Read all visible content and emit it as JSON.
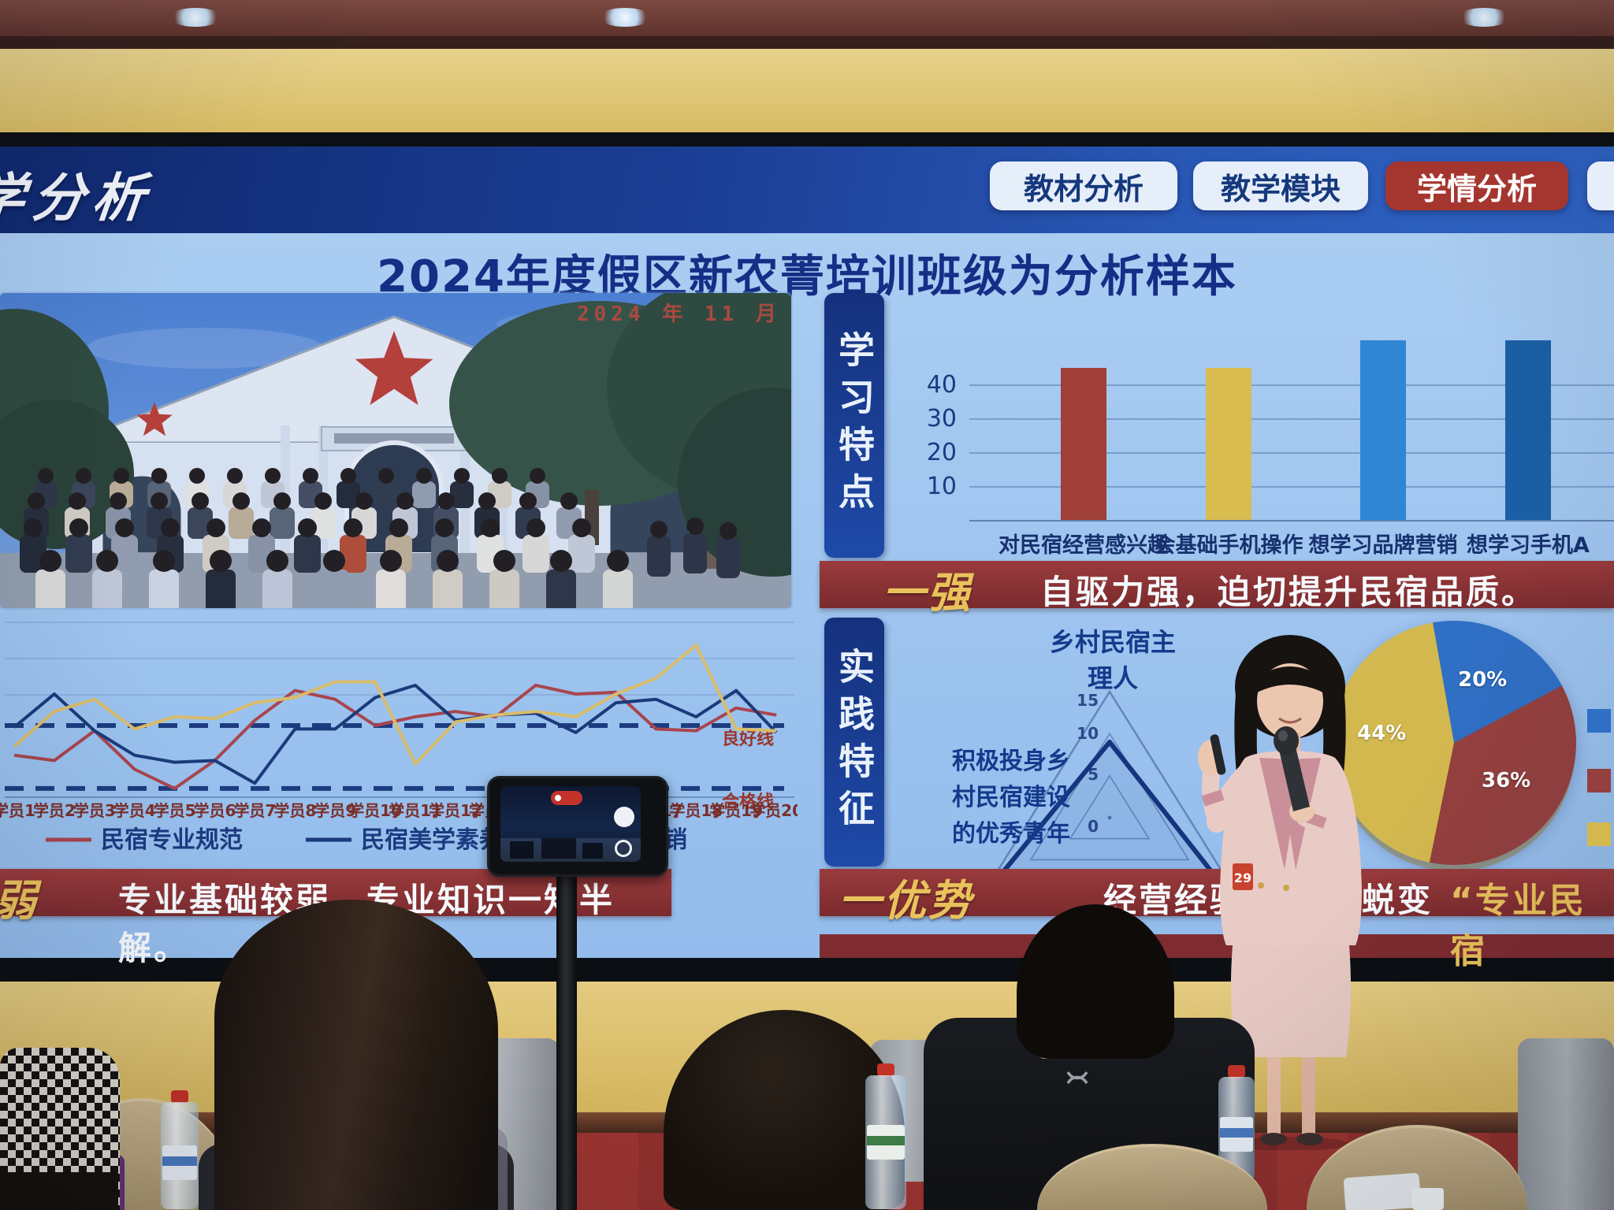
{
  "room": {
    "wall_color": "#dfc579",
    "ceiling_color": "#6e3e38",
    "carpet_color": "#9a3430",
    "ceiling_lights": 3
  },
  "screen": {
    "header": {
      "title_partial": "学分析",
      "tabs": [
        {
          "label": "教材分析",
          "active": false,
          "cut_off": false
        },
        {
          "label": "教学模块",
          "active": false,
          "cut_off": false
        },
        {
          "label": "学情分析",
          "active": true,
          "cut_off": false
        },
        {
          "label": "",
          "active": false,
          "cut_off": true
        }
      ]
    },
    "slide": {
      "title": "2024年度假区新农菁培训班级为分析样本",
      "photo_date_stamp": "2024 年 11 月",
      "study_section": {
        "side_label": "学习特点",
        "banner": {
          "tag": "一强",
          "text": "自驱力强，迫切提升民宿品质。"
        }
      },
      "foundation_banner": {
        "tag": "弱",
        "text": "专业基础较弱，专业知识一知半解。"
      },
      "practice_section": {
        "side_label": "实践特征",
        "radar_title": [
          "乡村民宿主",
          "理人"
        ],
        "radar_left_label": [
          "积极投身乡",
          "村民宿建设",
          "的优秀青年"
        ],
        "banner": {
          "tag": "一优势",
          "text_mid": "经营经验",
          "text_r1": "蜕变",
          "text_r2": "“专业民宿"
        }
      }
    }
  },
  "presenter": {
    "badge": "29"
  },
  "chart_data": [
    {
      "type": "bar",
      "title": "",
      "categories": [
        "对民宿经营感兴趣",
        "会基础手机操作",
        "想学习品牌营销",
        "想学习手机A"
      ],
      "values": [
        45,
        45,
        53,
        53
      ],
      "colors": [
        "#a04038",
        "#d8bc50",
        "#2f86d4",
        "#1b5fa6"
      ],
      "y_ticks": [
        10,
        20,
        30,
        40
      ],
      "ylim": [
        0,
        58
      ],
      "grid": true,
      "note": "fourth category label cut off at right screen edge"
    },
    {
      "type": "line",
      "x": [
        "学员1",
        "学员2",
        "学员3",
        "学员4",
        "学员5",
        "学员6",
        "学员7",
        "学员8",
        "学员9",
        "学员10",
        "学员11",
        "学员12",
        "学员13",
        "学员14",
        "学员15",
        "学员16",
        "学员17",
        "学员18",
        "学员19",
        "学员20"
      ],
      "series": [
        {
          "name": "民宿专业规范",
          "color": "#a8454f",
          "values": [
            24,
            21,
            38,
            16,
            5,
            21,
            44,
            61,
            56,
            41,
            46,
            49,
            46,
            64,
            59,
            60,
            39,
            38,
            51,
            47
          ]
        },
        {
          "name": "民宿美学素养",
          "color": "#1b3a7a",
          "values": [
            40,
            59,
            38,
            24,
            20,
            21,
            8,
            39,
            39,
            57,
            64,
            44,
            47,
            48,
            37,
            54,
            56,
            46,
            61,
            37
          ]
        },
        {
          "name": "营销",
          "color": "#d9bc6a",
          "values": [
            29,
            49,
            56,
            39,
            46,
            45,
            54,
            57,
            66,
            66,
            19,
            43,
            47,
            49,
            46,
            59,
            68,
            87,
            39,
            38
          ],
          "note": "legend name partially hidden by phone rig"
        }
      ],
      "reference_lines": [
        {
          "label": "良好线",
          "value": 41
        },
        {
          "label": "合格线",
          "value": 5
        }
      ],
      "y_axis": "unlabeled; values estimated as % of plot height",
      "legend_position": "bottom"
    },
    {
      "type": "radar",
      "axes": [
        "乡村民宿主理人",
        "积极投身乡村民宿建设的优秀青年",
        ""
      ],
      "ring_ticks": [
        0,
        5,
        10,
        15
      ],
      "values": [
        9,
        14,
        13
      ],
      "note": "third axis label hidden behind presenter"
    },
    {
      "type": "pie",
      "slices": [
        {
          "label": "20%",
          "value": 20,
          "color": "#2f6fc4"
        },
        {
          "label": "36%",
          "value": 36,
          "color": "#94403f"
        },
        {
          "label": "44%",
          "value": 44,
          "color": "#d2b84e"
        }
      ],
      "legend_labels_visible": false,
      "note": "legend squares at right edge; labels cut off by screen edge"
    }
  ]
}
